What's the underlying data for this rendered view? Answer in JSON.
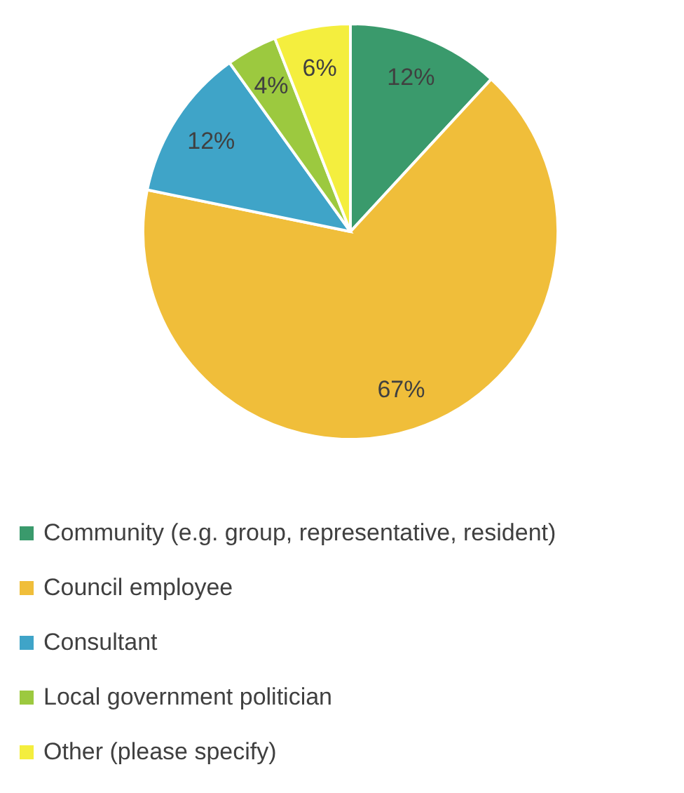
{
  "chart_data": {
    "type": "pie",
    "categories": [
      "Community (e.g. group, representative, resident)",
      "Council employee",
      "Consultant",
      "Local government politician",
      "Other (please specify)"
    ],
    "values": [
      12,
      67,
      12,
      4,
      6
    ],
    "colors": [
      "#3a9a6c",
      "#f0be3a",
      "#3fa4c8",
      "#9cc93f",
      "#f4ee3e"
    ],
    "value_labels": [
      "12%",
      "67%",
      "12%",
      "4%",
      "6%"
    ],
    "legend": "bottom"
  }
}
